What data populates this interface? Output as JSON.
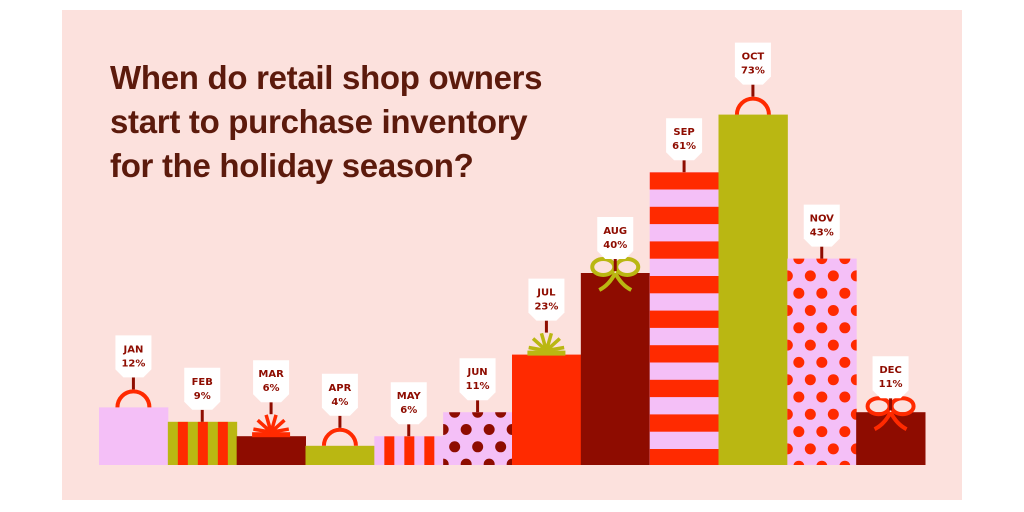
{
  "chart_data": {
    "type": "bar",
    "title_lines": [
      "When do retail shop owners",
      "start to purchase inventory",
      "for the holiday season?"
    ],
    "categories": [
      "JAN",
      "FEB",
      "MAR",
      "APR",
      "MAY",
      "JUN",
      "JUL",
      "AUG",
      "SEP",
      "OCT",
      "NOV",
      "DEC"
    ],
    "values": [
      12,
      9,
      6,
      4,
      6,
      11,
      23,
      40,
      61,
      73,
      43,
      11
    ],
    "value_labels": [
      "12%",
      "9%",
      "6%",
      "4%",
      "6%",
      "11%",
      "23%",
      "40%",
      "61%",
      "73%",
      "43%",
      "11%"
    ],
    "ylim": [
      0,
      75
    ],
    "grid": false,
    "legend": "none",
    "bar_styles": [
      {
        "fill": "pink",
        "pattern": "plain",
        "topper": "handle",
        "accent": "red"
      },
      {
        "fill": "olive",
        "pattern": "vertical-stripes",
        "topper": "none",
        "accent": "red"
      },
      {
        "fill": "darkred",
        "pattern": "plain",
        "topper": "burst",
        "accent": "red"
      },
      {
        "fill": "olive",
        "pattern": "plain",
        "topper": "handle",
        "accent": "red"
      },
      {
        "fill": "pink",
        "pattern": "vertical-stripes",
        "topper": "none",
        "accent": "red"
      },
      {
        "fill": "pink",
        "pattern": "dots",
        "topper": "none",
        "accent": "darkred"
      },
      {
        "fill": "red",
        "pattern": "plain",
        "topper": "burst",
        "accent": "olive"
      },
      {
        "fill": "darkred",
        "pattern": "plain",
        "topper": "bow",
        "accent": "olive"
      },
      {
        "fill": "pink",
        "pattern": "horizontal-stripes",
        "topper": "none",
        "accent": "red"
      },
      {
        "fill": "olive",
        "pattern": "plain",
        "topper": "handle",
        "accent": "red"
      },
      {
        "fill": "pink",
        "pattern": "dots",
        "topper": "none",
        "accent": "red"
      },
      {
        "fill": "darkred",
        "pattern": "plain",
        "topper": "bow",
        "accent": "red"
      }
    ]
  },
  "colors": {
    "background": "#fce1dd",
    "title": "#5c1a0c",
    "pink": "#f4bff7",
    "olive": "#bab712",
    "red": "#ff2a00",
    "darkred": "#8e0c00",
    "tag": "#ffffff"
  }
}
